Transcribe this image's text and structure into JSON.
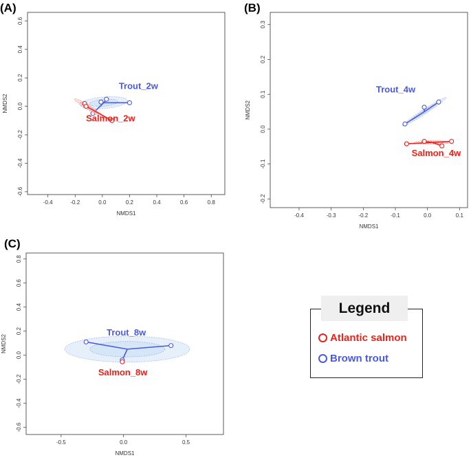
{
  "panels_labels": {
    "A": "(A)",
    "B": "(B)",
    "C": "(C)"
  },
  "colors": {
    "salmon": "#e8231c",
    "trout": "#4a5ae0",
    "trout_fill": "#cfe3f5"
  },
  "legend": {
    "title": "Legend",
    "items": [
      {
        "label": "Atlantic salmon",
        "color": "#e8231c"
      },
      {
        "label": "Brown trout",
        "color": "#4a5ae0"
      }
    ]
  },
  "chart_data": [
    {
      "type": "scatter",
      "panel": "A",
      "xlabel": "NMDS1",
      "ylabel": "NMDS2",
      "xlim": [
        -0.55,
        0.9
      ],
      "ylim": [
        -0.62,
        0.66
      ],
      "xticks": [
        -0.4,
        -0.2,
        0.0,
        0.2,
        0.4,
        0.6,
        0.8
      ],
      "xtick_labels": [
        "-0.4",
        "-0.2",
        "0.0",
        "0.2",
        "0.4",
        "0.6",
        "0.8"
      ],
      "yticks": [
        -0.6,
        -0.4,
        -0.2,
        0.0,
        0.2,
        0.4,
        0.6
      ],
      "ytick_labels": [
        "-0.6",
        "-0.4",
        "-0.2",
        "0.0",
        "0.2",
        "0.4",
        "0.6"
      ],
      "series": [
        {
          "name": "Trout_2w",
          "group": "trout",
          "label": "Trout_2w",
          "centroid": [
            0.01,
            0.025
          ],
          "points": [
            [
              -0.07,
              -0.05
            ],
            [
              -0.01,
              0.03
            ],
            [
              0.03,
              0.05
            ],
            [
              0.2,
              0.025
            ]
          ],
          "ellipse": {
            "rx": 0.14,
            "ry": 0.03,
            "angle": 5
          }
        },
        {
          "name": "Salmon_2w",
          "group": "salmon",
          "label": "Salmon_2w",
          "centroid": [
            -0.1,
            -0.01
          ],
          "points": [
            [
              -0.13,
              0.02
            ],
            [
              -0.12,
              0.0
            ],
            [
              0.07,
              -0.1
            ]
          ],
          "ellipse": {
            "rx": 0.1,
            "ry": 0.012,
            "angle": -32
          }
        }
      ]
    },
    {
      "type": "scatter",
      "panel": "B",
      "xlabel": "NMDS1",
      "ylabel": "NMDS2",
      "xlim": [
        -0.49,
        0.125
      ],
      "ylim": [
        -0.225,
        0.335
      ],
      "xticks": [
        -0.4,
        -0.3,
        -0.2,
        -0.1,
        0.0,
        0.1
      ],
      "xtick_labels": [
        "-0.4",
        "-0.3",
        "-0.2",
        "-0.1",
        "0.0",
        "0.1"
      ],
      "yticks": [
        -0.2,
        -0.1,
        0.0,
        0.1,
        0.2,
        0.3
      ],
      "ytick_labels": [
        "-0.2",
        "-0.1",
        "0.0",
        "0.1",
        "0.2",
        "0.3"
      ],
      "series": [
        {
          "name": "Trout_4w",
          "group": "trout",
          "label": "Trout_4w",
          "centroid": [
            -0.01,
            0.05
          ],
          "points": [
            [
              -0.07,
              0.015
            ],
            [
              -0.01,
              0.063
            ],
            [
              0.035,
              0.078
            ]
          ],
          "ellipse": {
            "rx": 0.065,
            "ry": 0.005,
            "angle": 33
          }
        },
        {
          "name": "Salmon_4w",
          "group": "salmon",
          "label": "Salmon_4w",
          "centroid": [
            0.015,
            -0.038
          ],
          "points": [
            [
              -0.065,
              -0.042
            ],
            [
              -0.01,
              -0.035
            ],
            [
              0.045,
              -0.048
            ],
            [
              0.075,
              -0.035
            ]
          ],
          "ellipse": {
            "rx": 0.045,
            "ry": 0.004,
            "angle": 0
          }
        }
      ]
    },
    {
      "type": "scatter",
      "panel": "C",
      "xlabel": "NMDS1",
      "ylabel": "NMDS2",
      "xlim": [
        -0.78,
        0.8
      ],
      "ylim": [
        -0.66,
        0.85
      ],
      "xticks": [
        -0.5,
        0.0,
        0.5
      ],
      "xtick_labels": [
        "-0.5",
        "0.0",
        "0.5"
      ],
      "yticks": [
        -0.6,
        -0.4,
        -0.2,
        0.0,
        0.2,
        0.4,
        0.6,
        0.8
      ],
      "ytick_labels": [
        "-0.6",
        "-0.4",
        "-0.2",
        "0.0",
        "0.2",
        "0.4",
        "0.6",
        "0.8"
      ],
      "series": [
        {
          "name": "Trout_8w",
          "group": "trout",
          "label": "Trout_8w",
          "centroid": [
            0.03,
            0.05
          ],
          "points": [
            [
              -0.3,
              0.11
            ],
            [
              0.38,
              0.08
            ],
            [
              -0.01,
              -0.04
            ]
          ],
          "ellipse": {
            "rx": 0.4,
            "ry": 0.08,
            "angle": 0
          }
        },
        {
          "name": "Salmon_8w",
          "group": "salmon",
          "label": "Salmon_8w",
          "centroid": [
            -0.01,
            -0.055
          ],
          "points": [
            [
              -0.01,
              -0.055
            ]
          ],
          "ellipse": null
        }
      ]
    }
  ]
}
